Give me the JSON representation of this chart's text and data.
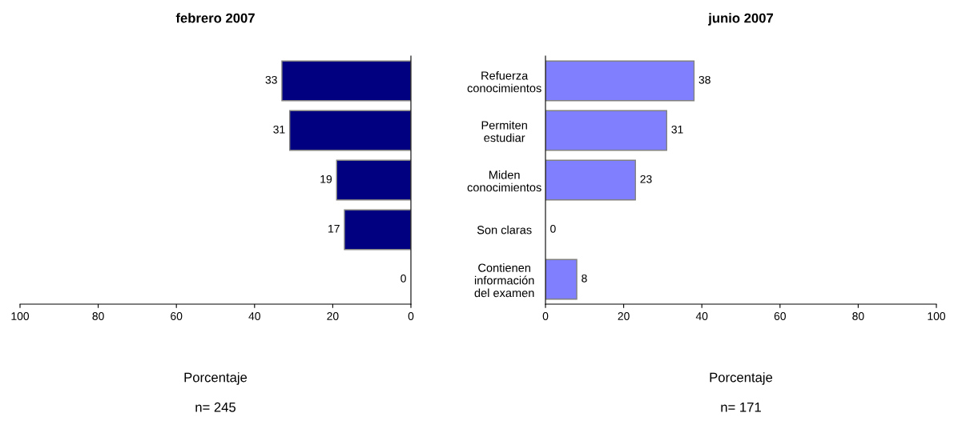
{
  "chart_data": [
    {
      "type": "bar",
      "orientation": "horizontal",
      "title": "febrero 2007",
      "xlabel": "Porcentaje",
      "categories": [
        "Refuerza\nconocimientos",
        "Permiten\nestudiar",
        "Miden\nconocimientos",
        "Son claras",
        "Contienen\ninformación\ndel examen"
      ],
      "values": [
        33,
        31,
        19,
        17,
        0
      ],
      "color": "#000080",
      "data_labels": true,
      "xlim": [
        100,
        0
      ],
      "xticks": [
        100,
        80,
        60,
        40,
        20,
        0
      ],
      "grid": false,
      "legend": false,
      "annotations": [
        "n= 245"
      ]
    },
    {
      "type": "bar",
      "orientation": "horizontal",
      "title": "junio 2007",
      "xlabel": "Porcentaje",
      "categories": [
        null,
        null,
        null,
        null,
        null
      ],
      "values": [
        38,
        31,
        23,
        0,
        8
      ],
      "color": "#8080ff",
      "data_labels": true,
      "xlim": [
        0,
        100
      ],
      "xticks": [
        0,
        20,
        40,
        60,
        80,
        100
      ],
      "tick_labels": "x",
      "grid": false,
      "legend": false,
      "annotations": [
        "n= 171"
      ]
    }
  ]
}
